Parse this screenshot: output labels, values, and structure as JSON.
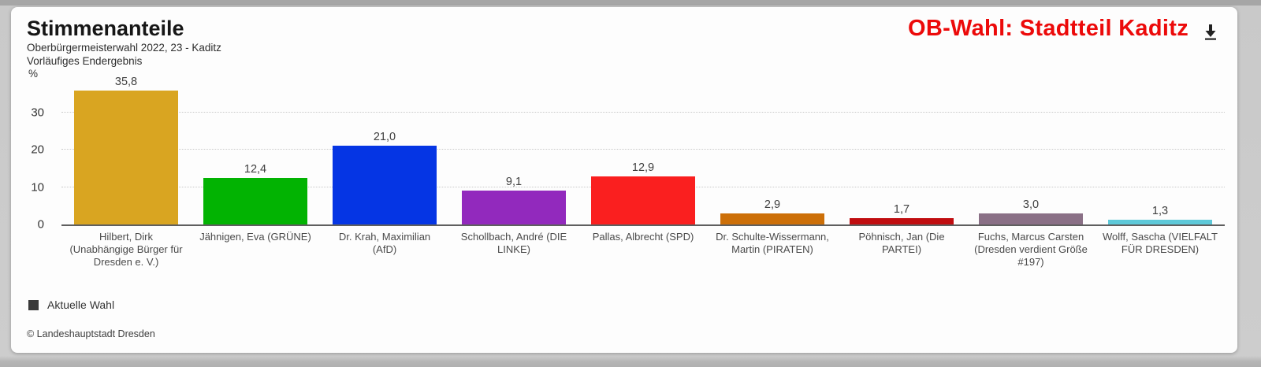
{
  "header": {
    "title": "Stimmenanteile",
    "subtitle_line1": "Oberbürgermeisterwahl 2022, 23 - Kaditz",
    "subtitle_line2": "Vorläufiges Endergebnis",
    "banner": "OB-Wahl: Stadtteil Kaditz",
    "banner_color": "#ec0a0a",
    "download_icon": "download-icon"
  },
  "chart_data": {
    "type": "bar",
    "title": "Stimmenanteile",
    "subtitle": "Oberbürgermeisterwahl 2022, 23 - Kaditz — Vorläufiges Endergebnis",
    "unit_label": "%",
    "ylim": [
      0,
      40
    ],
    "yticks": [
      0,
      10,
      20,
      30
    ],
    "grid": "horizontal-dotted",
    "legend": {
      "label": "Aktuelle Wahl",
      "swatch_color": "#3a3a3a",
      "position": "bottom-left"
    },
    "categories": [
      "Hilbert, Dirk (Unabhängige Bürger für Dresden e. V.)",
      "Jähnigen, Eva (GRÜNE)",
      "Dr. Krah, Maximilian (AfD)",
      "Schollbach, André (DIE LINKE)",
      "Pallas, Albrecht (SPD)",
      "Dr. Schulte-Wissermann, Martin (PIRATEN)",
      "Pöhnisch, Jan (Die PARTEI)",
      "Fuchs, Marcus Carsten (Dresden verdient Größe #197)",
      "Wolff, Sascha (VIELFALT FÜR DRESDEN)"
    ],
    "values": [
      35.8,
      12.4,
      21.0,
      9.1,
      12.9,
      2.9,
      1.7,
      3.0,
      1.3
    ],
    "value_labels": [
      "35,8",
      "12,4",
      "21,0",
      "9,1",
      "12,9",
      "2,9",
      "1,7",
      "3,0",
      "1,3"
    ],
    "colors": [
      "#d9a521",
      "#02b302",
      "#0535e4",
      "#9229bd",
      "#fa1f1f",
      "#cc6f08",
      "#c00d10",
      "#8a7086",
      "#5ec9d9"
    ]
  },
  "footer": {
    "copyright": "© Landeshauptstadt Dresden"
  }
}
